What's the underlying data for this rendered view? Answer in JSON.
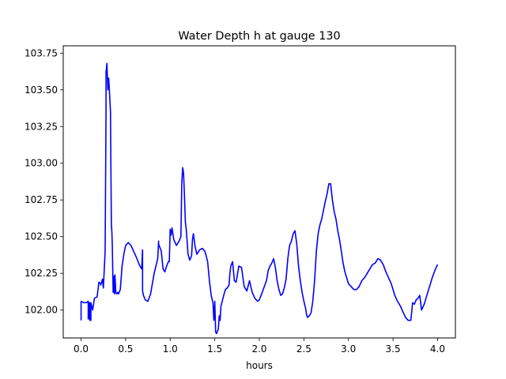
{
  "chart_data": {
    "type": "line",
    "title": "Water Depth h at gauge 130",
    "xlabel": "hours",
    "ylabel": "",
    "xlim": [
      -0.2,
      4.2
    ],
    "ylim": [
      101.81,
      103.8
    ],
    "xticks": [
      0.0,
      0.5,
      1.0,
      1.5,
      2.0,
      2.5,
      3.0,
      3.5,
      4.0
    ],
    "xtick_labels": [
      "0.0",
      "0.5",
      "1.0",
      "1.5",
      "2.0",
      "2.5",
      "3.0",
      "3.5",
      "4.0"
    ],
    "yticks": [
      102.0,
      102.25,
      102.5,
      102.75,
      103.0,
      103.25,
      103.5,
      103.75
    ],
    "ytick_labels": [
      "102.00",
      "102.25",
      "102.50",
      "102.75",
      "103.00",
      "103.25",
      "103.50",
      "103.75"
    ],
    "grid": false,
    "legend": "none",
    "series": [
      {
        "color": "#0000ff",
        "x": [
          0.0,
          0.0,
          0.03,
          0.06,
          0.08,
          0.08,
          0.09,
          0.09,
          0.1,
          0.1,
          0.11,
          0.11,
          0.13,
          0.15,
          0.18,
          0.2,
          0.22,
          0.22,
          0.24,
          0.25,
          0.27,
          0.28,
          0.28,
          0.29,
          0.3,
          0.31,
          0.32,
          0.33,
          0.335,
          0.34,
          0.345,
          0.35,
          0.36,
          0.37,
          0.375,
          0.38,
          0.39,
          0.4,
          0.4,
          0.41,
          0.42,
          0.44,
          0.46,
          0.48,
          0.5,
          0.53,
          0.56,
          0.59,
          0.62,
          0.66,
          0.68,
          0.69,
          0.69,
          0.7,
          0.72,
          0.75,
          0.78,
          0.82,
          0.86,
          0.87,
          0.87,
          0.9,
          0.92,
          0.94,
          0.96,
          0.98,
          0.99,
          1.0,
          1.01,
          1.02,
          1.04,
          1.07,
          1.1,
          1.12,
          1.13,
          1.14,
          1.15,
          1.16,
          1.17,
          1.18,
          1.2,
          1.22,
          1.24,
          1.25,
          1.26,
          1.28,
          1.3,
          1.33,
          1.36,
          1.39,
          1.42,
          1.44,
          1.46,
          1.48,
          1.49,
          1.5,
          1.51,
          1.52,
          1.54,
          1.55,
          1.56,
          1.57,
          1.58,
          1.6,
          1.62,
          1.64,
          1.66,
          1.67,
          1.68,
          1.7,
          1.72,
          1.74,
          1.77,
          1.8,
          1.83,
          1.86,
          1.89,
          1.92,
          1.95,
          1.98,
          2.0,
          2.02,
          2.05,
          2.08,
          2.1,
          2.12,
          2.14,
          2.16,
          2.18,
          2.2,
          2.22,
          2.24,
          2.26,
          2.28,
          2.3,
          2.31,
          2.32,
          2.33,
          2.34,
          2.36,
          2.38,
          2.4,
          2.42,
          2.44,
          2.46,
          2.48,
          2.5,
          2.52,
          2.53,
          2.54,
          2.56,
          2.58,
          2.6,
          2.62,
          2.64,
          2.66,
          2.68,
          2.7,
          2.72,
          2.74,
          2.76,
          2.78,
          2.8,
          2.82,
          2.84,
          2.86,
          2.88,
          2.9,
          2.92,
          2.94,
          2.96,
          2.98,
          3.0,
          3.03,
          3.06,
          3.09,
          3.12,
          3.15,
          3.18,
          3.21,
          3.24,
          3.27,
          3.3,
          3.33,
          3.36,
          3.39,
          3.42,
          3.45,
          3.48,
          3.5,
          3.52,
          3.55,
          3.58,
          3.61,
          3.64,
          3.67,
          3.7,
          3.72,
          3.74,
          3.76,
          3.78,
          3.8,
          3.82,
          3.85,
          3.88,
          3.91,
          3.94,
          3.97,
          4.0
        ],
        "y": [
          101.93,
          102.06,
          102.05,
          102.05,
          102.06,
          101.94,
          101.94,
          102.05,
          102.05,
          101.93,
          101.93,
          102.05,
          102.0,
          102.08,
          102.09,
          102.19,
          102.18,
          102.17,
          102.21,
          102.15,
          102.4,
          103.35,
          103.62,
          103.68,
          103.5,
          103.58,
          103.47,
          103.35,
          102.95,
          102.58,
          102.54,
          102.45,
          102.12,
          102.23,
          102.11,
          102.24,
          102.12,
          102.11,
          102.11,
          102.12,
          102.11,
          102.14,
          102.3,
          102.38,
          102.44,
          102.46,
          102.44,
          102.4,
          102.36,
          102.3,
          102.28,
          102.41,
          102.13,
          102.1,
          102.07,
          102.06,
          102.11,
          102.25,
          102.35,
          102.47,
          102.45,
          102.4,
          102.28,
          102.26,
          102.3,
          102.33,
          102.33,
          102.55,
          102.51,
          102.56,
          102.48,
          102.44,
          102.47,
          102.5,
          102.86,
          102.97,
          102.93,
          102.78,
          102.6,
          102.55,
          102.38,
          102.34,
          102.37,
          102.48,
          102.52,
          102.43,
          102.38,
          102.41,
          102.42,
          102.4,
          102.33,
          102.2,
          102.1,
          102.05,
          101.93,
          102.06,
          101.85,
          101.84,
          101.87,
          101.96,
          101.93,
          102.03,
          102.05,
          102.1,
          102.14,
          102.15,
          102.17,
          102.25,
          102.3,
          102.33,
          102.2,
          102.19,
          102.3,
          102.29,
          102.16,
          102.13,
          102.2,
          102.12,
          102.08,
          102.06,
          102.07,
          102.1,
          102.15,
          102.2,
          102.27,
          102.3,
          102.32,
          102.35,
          102.29,
          102.2,
          102.14,
          102.1,
          102.11,
          102.15,
          102.21,
          102.28,
          102.35,
          102.4,
          102.44,
          102.47,
          102.52,
          102.54,
          102.45,
          102.3,
          102.2,
          102.12,
          102.06,
          102.01,
          101.97,
          101.95,
          101.96,
          101.98,
          102.06,
          102.2,
          102.4,
          102.52,
          102.58,
          102.62,
          102.68,
          102.74,
          102.79,
          102.86,
          102.86,
          102.75,
          102.67,
          102.62,
          102.54,
          102.48,
          102.4,
          102.32,
          102.26,
          102.22,
          102.18,
          102.16,
          102.14,
          102.14,
          102.16,
          102.2,
          102.22,
          102.25,
          102.28,
          102.31,
          102.32,
          102.35,
          102.34,
          102.31,
          102.26,
          102.22,
          102.18,
          102.14,
          102.1,
          102.06,
          102.03,
          101.99,
          101.95,
          101.93,
          101.93,
          102.05,
          102.04,
          102.07,
          102.08,
          102.1,
          102.0,
          102.04,
          102.1,
          102.16,
          102.22,
          102.27,
          102.31
        ]
      }
    ]
  }
}
